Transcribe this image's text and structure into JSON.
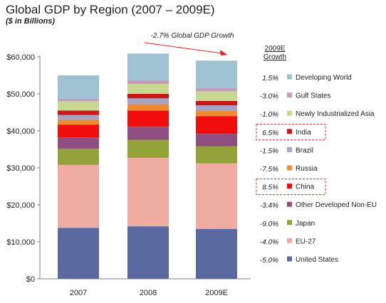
{
  "chart_data": {
    "type": "bar",
    "stacked": true,
    "title": "Global GDP by Region (2007 – 2009E)",
    "subtitle": "($ in Billions)",
    "xlabel": "",
    "ylabel": "",
    "categories": [
      "2007",
      "2008",
      "2009E"
    ],
    "ylim": [
      0,
      60000
    ],
    "yticks": [
      "$0",
      "$10,000",
      "$20,000",
      "$30,000",
      "$40,000",
      "$50,000",
      "$60,000"
    ],
    "annotation": "-2.7% Global GDP Growth",
    "growth_header": "2009E Growth",
    "legend_position": "right",
    "grid": false,
    "highlighted_series": [
      "India",
      "China"
    ],
    "series": [
      {
        "name": "United States",
        "growth": "-5.0%",
        "color": "#5a6aa0",
        "values": [
          13800,
          14200,
          13500
        ]
      },
      {
        "name": "EU-27",
        "growth": "-4.0%",
        "color": "#f0aca0",
        "values": [
          17000,
          18500,
          17700
        ]
      },
      {
        "name": "Japan",
        "growth": "-9.0%",
        "color": "#94a23a",
        "values": [
          4400,
          4900,
          4600
        ]
      },
      {
        "name": "Other Developed Non-EU",
        "growth": "-3.4%",
        "color": "#8e4f80",
        "values": [
          3000,
          3500,
          3400
        ]
      },
      {
        "name": "China",
        "growth": "8.5%",
        "color": "#f20d0d",
        "values": [
          3500,
          4400,
          4800
        ]
      },
      {
        "name": "Russia",
        "growth": "-7.5%",
        "color": "#ef8a30",
        "values": [
          1300,
          1700,
          1400
        ]
      },
      {
        "name": "Brazil",
        "growth": "-1.5%",
        "color": "#a8a2c8",
        "values": [
          1300,
          1600,
          1500
        ]
      },
      {
        "name": "India",
        "growth": "6.5%",
        "color": "#c81818",
        "values": [
          1200,
          1200,
          1200
        ]
      },
      {
        "name": "Newly Industrialized Asia",
        "growth": "-1.0%",
        "color": "#c8d890",
        "values": [
          2500,
          2700,
          2600
        ]
      },
      {
        "name": "Gulf States",
        "growth": "-3.0%",
        "color": "#c89ac0",
        "values": [
          700,
          1000,
          900
        ]
      },
      {
        "name": "Developing World",
        "growth": "1.5%",
        "color": "#9ec2d2",
        "values": [
          6300,
          7200,
          7400
        ]
      }
    ]
  }
}
